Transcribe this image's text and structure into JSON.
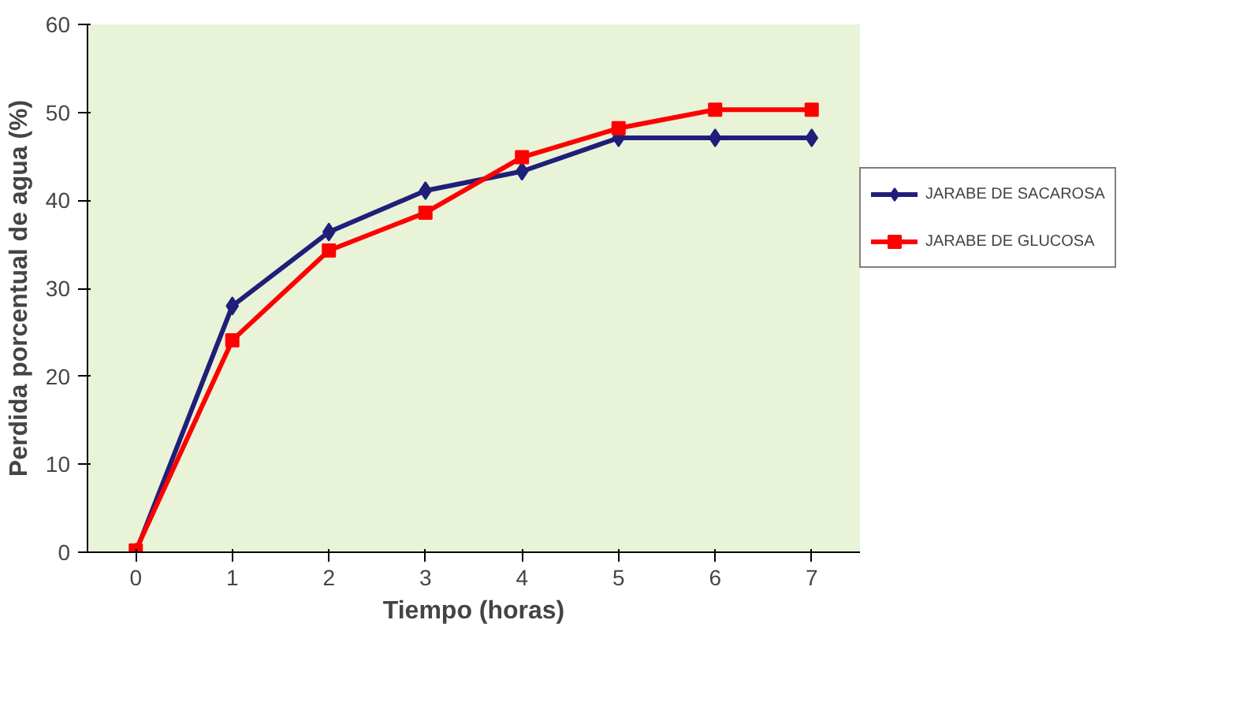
{
  "chart_data": {
    "type": "line",
    "xlabel": "Tiempo (horas)",
    "ylabel": "Perdida porcentual de agua (%)",
    "categories": [
      "0",
      "1",
      "2",
      "3",
      "4",
      "5",
      "6",
      "7"
    ],
    "ylim": [
      0,
      60
    ],
    "yticks": [
      0,
      10,
      20,
      30,
      40,
      50,
      60
    ],
    "grid": false,
    "legend": "right",
    "line_style": "solid",
    "series": [
      {
        "name": "JARABE DE SACAROSA",
        "color": "#1f1f7a",
        "marker": "diamond",
        "values": [
          0,
          28,
          36.4,
          41.1,
          43.3,
          47.1,
          47.1,
          47.1
        ]
      },
      {
        "name": "JARABE DE GLUCOSA",
        "color": "#ff0000",
        "marker": "square",
        "values": [
          0.2,
          24.1,
          34.3,
          38.6,
          44.9,
          48.2,
          50.3,
          50.3
        ]
      }
    ]
  }
}
